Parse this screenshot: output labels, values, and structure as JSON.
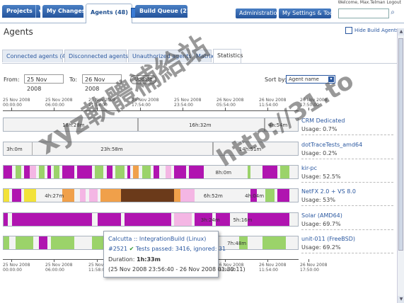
{
  "header": {
    "tabs": [
      {
        "label": "Projects"
      },
      {
        "label": "My Changes"
      },
      {
        "label": "Agents (48)"
      },
      {
        "label": "Build Queue (21)"
      }
    ],
    "right_tabs": [
      {
        "label": "Administration"
      },
      {
        "label": "My Settings & Tools"
      }
    ],
    "welcome": "Welcome, Max.Telman   Logout",
    "search_placeholder": ""
  },
  "page": {
    "title": "Agents",
    "hide_all": "Hide Build Agents"
  },
  "subtabs": [
    {
      "label": "Connected agents (48)"
    },
    {
      "label": "Disconnected agents (4)"
    },
    {
      "label": "Unauthorized agents (5)"
    },
    {
      "label": "Matrix"
    },
    {
      "label": "Statistics"
    }
  ],
  "filters": {
    "from_label": "From:",
    "from_value": "25 Nov 2008",
    "to_label": "To:",
    "to_value": "26 Nov 2008",
    "update_label": "Update",
    "sort_label": "Sort by:",
    "sort_value": "Agent name"
  },
  "axis": {
    "ticks": [
      "25 Nov 2008\n00:00:00",
      "25 Nov 2008\n06:00:00",
      "25 Nov 2008\n11:58:00",
      "25 Nov 2008\n17:54:00",
      "25 Nov 2008\n23:54:00",
      "26 Nov 2008\n05:54:00",
      "26 Nov 2008\n11:54:00",
      "26 Nov 2008\n17:50:00"
    ]
  },
  "agents": [
    {
      "name": "CRM Dedicated",
      "usage": "Usage: 0.7%",
      "labels": [
        "18h:28m",
        "16h:32m",
        "4h:54m"
      ]
    },
    {
      "name": "dotTraceTests_amd64",
      "usage": "Usage: 0.2%",
      "labels": [
        "3h:0m",
        "23h:58m",
        "14h:51m"
      ]
    },
    {
      "name": "kir-pc",
      "usage": "Usage: 52.5%",
      "labels": [
        "8h:0m"
      ]
    },
    {
      "name": "NetFX 2.0 + VS 8.0",
      "usage": "Usage: 53%",
      "labels": [
        "4h:27m",
        "6h:52m",
        "4h:04m"
      ]
    },
    {
      "name": "Solar (AMD64)",
      "usage": "Usage: 69.7%",
      "labels": [
        "3h:24m",
        "5h:16m"
      ]
    },
    {
      "name": "unit-011 (FreeBSD)",
      "usage": "Usage: 69.2%",
      "labels": [
        "7h:48m"
      ]
    }
  ],
  "tooltip": {
    "title": "Calcutta :: IntegrationBuild (Linux)",
    "build": "#2521",
    "tests": "Tests passed: 3416, ignored: 31",
    "duration_label": "Duration:",
    "duration_value": "1h:33m",
    "range": "(25 Nov 2008 23:56:40 - 26 Nov 2008 01:30:11)"
  },
  "watermark": {
    "text1": "xyz軟體補給站",
    "text2": "http://31.to"
  },
  "colors": {
    "accent": "#24549c",
    "link": "#2b58a0",
    "magenta": "#b014b0",
    "green": "#9bd36a",
    "yellow": "#f2e23a",
    "orange": "#f0a04a",
    "brown": "#6b3a1a",
    "pink": "#f4b6e4"
  }
}
